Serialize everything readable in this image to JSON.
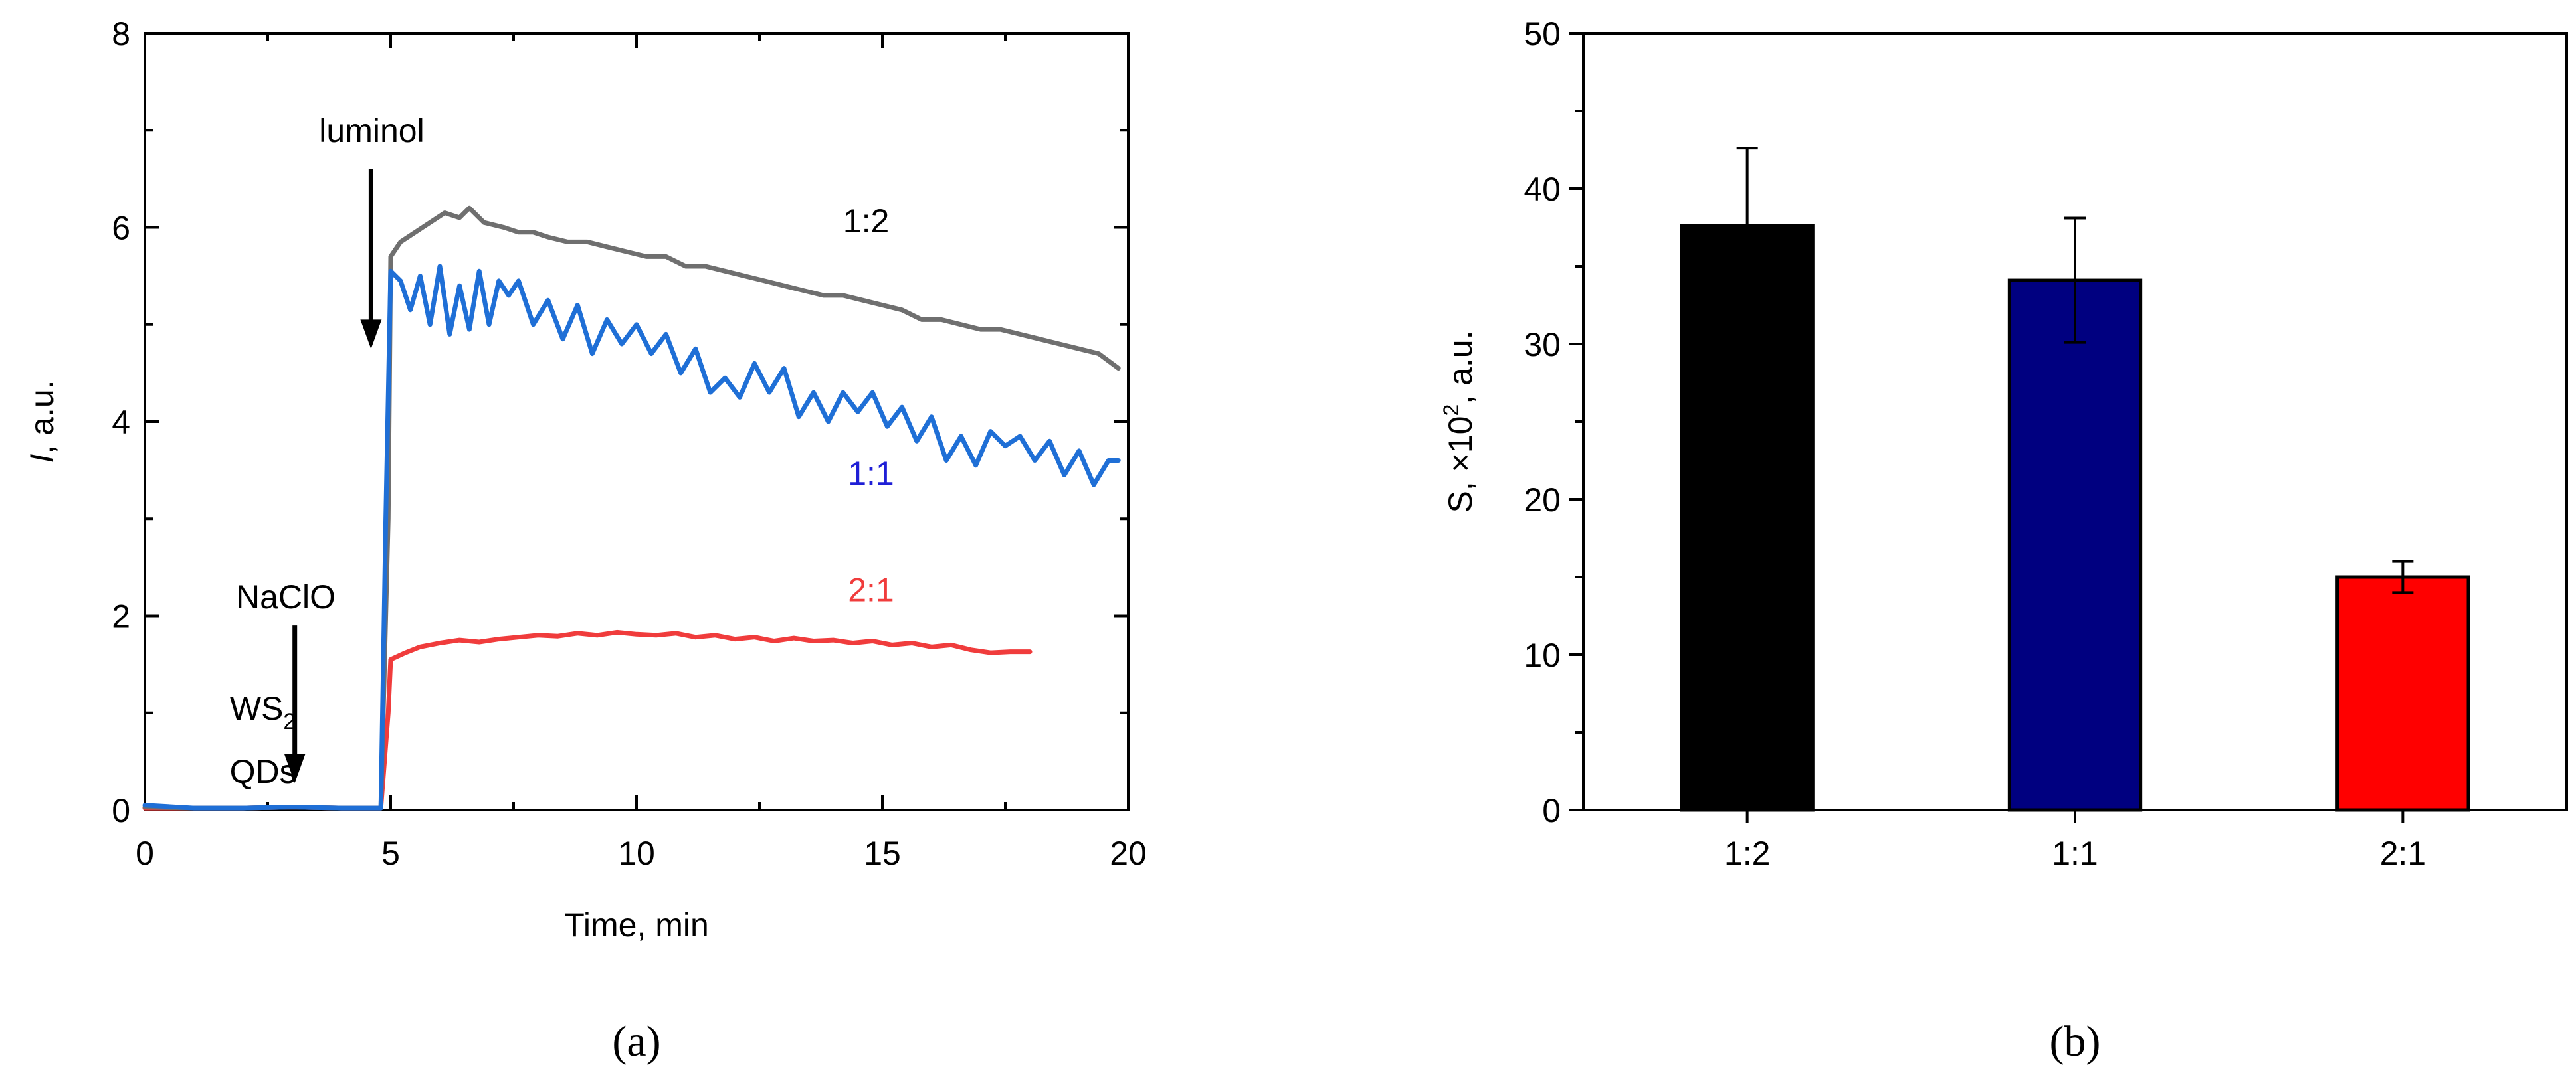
{
  "chart_data": [
    {
      "panel": "(a)",
      "type": "line",
      "xlabel": "Time, min",
      "ylabel_italic": "I",
      "ylabel_rest": ", a.u.",
      "xlim": [
        0,
        20
      ],
      "ylim": [
        0,
        8
      ],
      "xticks": [
        0,
        5,
        10,
        15,
        20
      ],
      "yticks": [
        0,
        2,
        4,
        6,
        8
      ],
      "series": [
        {
          "name": "1:2",
          "color": "#6f6f6f",
          "x": [
            0,
            1,
            2,
            3,
            4,
            4.8,
            4.95,
            5.0,
            5.2,
            5.5,
            5.8,
            6.1,
            6.4,
            6.6,
            6.9,
            7.3,
            7.6,
            7.9,
            8.2,
            8.6,
            9.0,
            9.4,
            9.8,
            10.2,
            10.6,
            11.0,
            11.4,
            11.8,
            12.2,
            12.6,
            13.0,
            13.4,
            13.8,
            14.2,
            14.6,
            15.0,
            15.4,
            15.8,
            16.2,
            16.6,
            17.0,
            17.4,
            17.8,
            18.2,
            18.6,
            19.0,
            19.4,
            19.8
          ],
          "y": [
            0.03,
            0.02,
            0.02,
            0.03,
            0.02,
            0.02,
            3.0,
            5.7,
            5.85,
            5.95,
            6.05,
            6.15,
            6.1,
            6.2,
            6.05,
            6.0,
            5.95,
            5.95,
            5.9,
            5.85,
            5.85,
            5.8,
            5.75,
            5.7,
            5.7,
            5.6,
            5.6,
            5.55,
            5.5,
            5.45,
            5.4,
            5.35,
            5.3,
            5.3,
            5.25,
            5.2,
            5.15,
            5.05,
            5.05,
            5.0,
            4.95,
            4.95,
            4.9,
            4.85,
            4.8,
            4.75,
            4.7,
            4.55
          ]
        },
        {
          "name": "1:1",
          "color": "#1f6fd6",
          "x": [
            0,
            1,
            2,
            3,
            4,
            4.8,
            4.9,
            5.0,
            5.2,
            5.4,
            5.6,
            5.8,
            6.0,
            6.2,
            6.4,
            6.6,
            6.8,
            7.0,
            7.2,
            7.4,
            7.6,
            7.9,
            8.2,
            8.5,
            8.8,
            9.1,
            9.4,
            9.7,
            10.0,
            10.3,
            10.6,
            10.9,
            11.2,
            11.5,
            11.8,
            12.1,
            12.4,
            12.7,
            13.0,
            13.3,
            13.6,
            13.9,
            14.2,
            14.5,
            14.8,
            15.1,
            15.4,
            15.7,
            16.0,
            16.3,
            16.6,
            16.9,
            17.2,
            17.5,
            17.8,
            18.1,
            18.4,
            18.7,
            19.0,
            19.3,
            19.6,
            19.8
          ],
          "y": [
            0.05,
            0.02,
            0.02,
            0.03,
            0.02,
            0.02,
            3.0,
            5.55,
            5.45,
            5.15,
            5.5,
            5.0,
            5.6,
            4.9,
            5.4,
            4.95,
            5.55,
            5.0,
            5.45,
            5.3,
            5.45,
            5.0,
            5.25,
            4.85,
            5.2,
            4.7,
            5.05,
            4.8,
            5.0,
            4.7,
            4.9,
            4.5,
            4.75,
            4.3,
            4.45,
            4.25,
            4.6,
            4.3,
            4.55,
            4.05,
            4.3,
            4.0,
            4.3,
            4.1,
            4.3,
            3.95,
            4.15,
            3.8,
            4.05,
            3.6,
            3.85,
            3.55,
            3.9,
            3.75,
            3.85,
            3.6,
            3.8,
            3.45,
            3.7,
            3.35,
            3.6,
            3.6
          ]
        },
        {
          "name": "2:1",
          "color": "#f03c3c",
          "x": [
            0,
            1,
            2,
            3,
            4,
            4.8,
            4.95,
            5.0,
            5.3,
            5.6,
            6.0,
            6.4,
            6.8,
            7.2,
            7.6,
            8.0,
            8.4,
            8.8,
            9.2,
            9.6,
            10.0,
            10.4,
            10.8,
            11.2,
            11.6,
            12.0,
            12.4,
            12.8,
            13.2,
            13.6,
            14.0,
            14.4,
            14.8,
            15.2,
            15.6,
            16.0,
            16.4,
            16.8,
            17.2,
            17.6,
            18.0
          ],
          "y": [
            0.02,
            0.02,
            0.02,
            0.03,
            0.02,
            0.02,
            1.0,
            1.55,
            1.62,
            1.68,
            1.72,
            1.75,
            1.73,
            1.76,
            1.78,
            1.8,
            1.79,
            1.82,
            1.8,
            1.83,
            1.81,
            1.8,
            1.82,
            1.78,
            1.8,
            1.76,
            1.78,
            1.74,
            1.77,
            1.74,
            1.75,
            1.72,
            1.74,
            1.7,
            1.72,
            1.68,
            1.7,
            1.65,
            1.62,
            1.63,
            1.63
          ]
        }
      ],
      "annotations": [
        {
          "label": "luminol",
          "x": 4.75,
          "y": 7.05
        },
        {
          "label": "NaClO",
          "x": 3.0,
          "y": 2.25
        },
        {
          "label_main": "WS",
          "label_sub": "2",
          "x": 2.4,
          "y": 1.1
        },
        {
          "label": "QDs",
          "x": 2.4,
          "y": 0.45
        }
      ],
      "series_labels": [
        {
          "text": "1:2",
          "color": "#000000",
          "x": 14.2,
          "y": 5.95
        },
        {
          "text": "1:1",
          "color": "#1f1fd6",
          "x": 14.3,
          "y": 3.35
        },
        {
          "text": "2:1",
          "color": "#f03c3c",
          "x": 14.3,
          "y": 2.15
        }
      ]
    },
    {
      "panel": "(b)",
      "type": "bar",
      "categories": [
        "1:2",
        "1:1",
        "2:1"
      ],
      "values": [
        37.6,
        34.1,
        15.0
      ],
      "errors": [
        5.0,
        4.0,
        1.0
      ],
      "colors": [
        "#000000",
        "#000080",
        "#ff0000"
      ],
      "ylabel_main": "S, ×10",
      "ylabel_sup": "2",
      "ylabel_end": ", a.u.",
      "ylim": [
        0,
        50
      ],
      "yticks": [
        0,
        10,
        20,
        30,
        40,
        50
      ]
    }
  ]
}
